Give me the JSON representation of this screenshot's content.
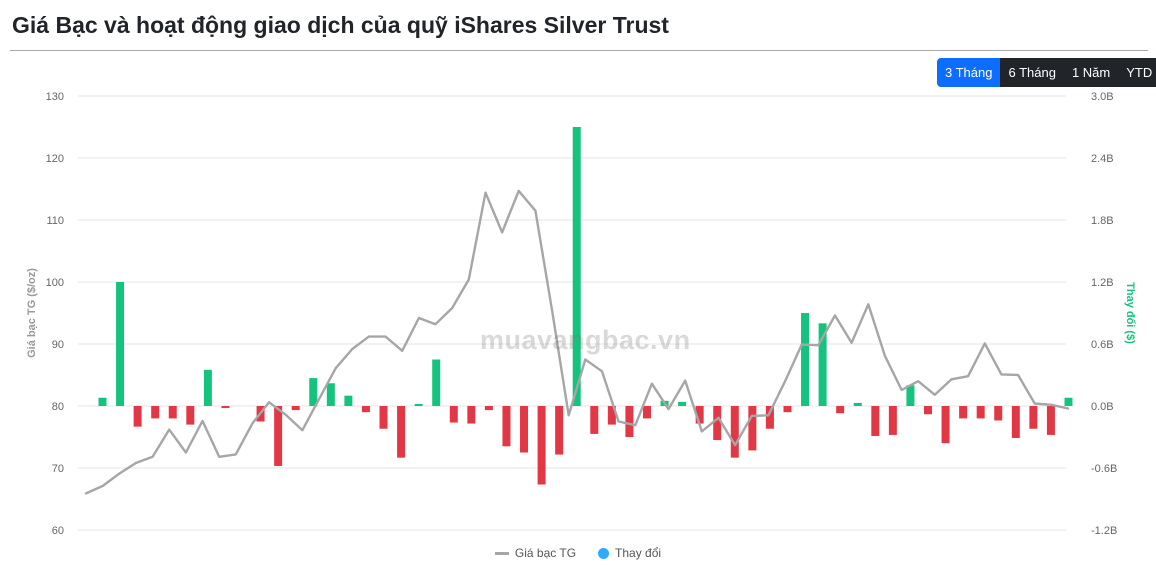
{
  "header": {
    "title": "Giá Bạc và hoạt động giao dịch của quỹ iShares Silver Trust"
  },
  "range_buttons": [
    {
      "label": "3 Tháng",
      "active": true
    },
    {
      "label": "6 Tháng",
      "active": false
    },
    {
      "label": "1 Năm",
      "active": false
    },
    {
      "label": "YTD",
      "active": false
    }
  ],
  "watermark": "muavangbac.vn",
  "colors": {
    "price_line": "#a6a6a6",
    "positive": "#14c37d",
    "negative": "#e23744",
    "legend_dot": "#2eaaff",
    "active_button": "#0d6efd"
  },
  "chart_data": {
    "type": "bar+line",
    "title": "Giá Bạc và hoạt động giao dịch của quỹ iShares Silver Trust",
    "y_left": {
      "label": "Giá bạc TG ($/oz)",
      "min": 60,
      "max": 130,
      "ticks": [
        "60",
        "70",
        "80",
        "90",
        "100",
        "110",
        "120",
        "130"
      ],
      "tick_values": [
        60,
        70,
        80,
        90,
        100,
        110,
        120,
        130
      ]
    },
    "y_right": {
      "label": "Thay đổi ($)",
      "min": -1.2,
      "max": 3.0,
      "ticks": [
        "-1.2B",
        "-0.6B",
        "0.0B",
        "0.6B",
        "1.2B",
        "1.8B",
        "2.4B",
        "3.0B"
      ],
      "tick_values": [
        -1.2,
        -0.6,
        0,
        0.6,
        1.2,
        1.8,
        2.4,
        3.0
      ]
    },
    "legend": [
      "Giá bạc TG",
      "Thay đổi"
    ],
    "series": [
      {
        "name": "Giá bạc TG",
        "type": "line",
        "values": [
          65.9,
          67.1,
          69.1,
          70.8,
          71.8,
          76.2,
          72.5,
          77.6,
          71.8,
          72.2,
          77.2,
          80.6,
          78.6,
          76.1,
          81.1,
          86.1,
          89.2,
          91.2,
          91.2,
          88.9,
          94.2,
          93.2,
          95.8,
          100.4,
          114.4,
          108.0,
          114.7,
          111.5,
          95.5,
          78.5,
          87.5,
          85.6,
          77.5,
          76.9,
          83.6,
          79.5,
          84.1,
          75.9,
          78.1,
          73.7,
          78.4,
          78.5,
          84.0,
          89.9,
          89.8,
          94.6,
          90.2,
          96.4,
          88.1,
          82.6,
          84.0,
          81.8,
          84.3,
          84.8,
          90.1,
          85.1,
          85.0,
          80.4,
          80.2,
          79.6
        ]
      },
      {
        "name": "Thay đổi",
        "type": "bar",
        "values": [
          0.08,
          1.2,
          -0.2,
          -0.12,
          -0.12,
          -0.18,
          0.35,
          -0.02,
          0,
          -0.15,
          -0.58,
          -0.04,
          0.27,
          0.22,
          0.1,
          -0.06,
          -0.22,
          -0.5,
          0.02,
          0.45,
          -0.16,
          -0.17,
          -0.04,
          -0.39,
          -0.45,
          -0.76,
          -0.47,
          2.7,
          -0.27,
          -0.18,
          -0.3,
          -0.12,
          0.05,
          0.04,
          -0.17,
          -0.33,
          -0.5,
          -0.43,
          -0.22,
          -0.06,
          0.9,
          0.8,
          -0.07,
          0.03,
          -0.29,
          -0.28,
          0.2,
          -0.08,
          -0.36,
          -0.12,
          -0.12,
          -0.14,
          -0.31,
          -0.22,
          -0.28,
          0.08
        ]
      }
    ]
  }
}
